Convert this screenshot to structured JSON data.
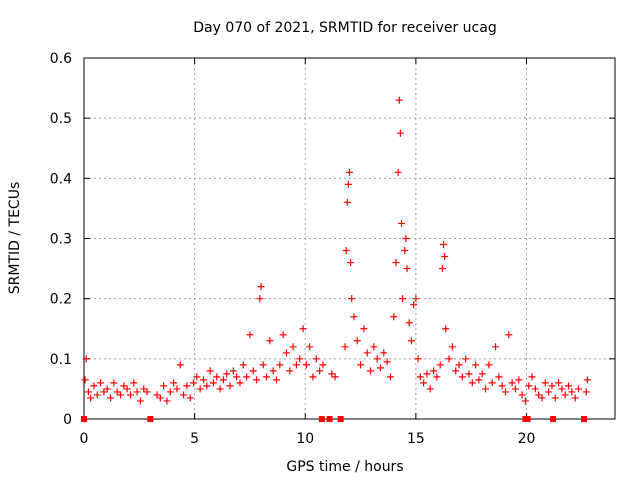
{
  "chart_data": {
    "type": "scatter",
    "title": "Day 070 of 2021, SRMTID for receiver ucag",
    "xlabel": "GPS time / hours",
    "ylabel": "SRMTID / TECUs",
    "xlim": [
      0,
      24
    ],
    "ylim": [
      0,
      0.6
    ],
    "xticks": [
      0,
      5,
      10,
      15,
      20
    ],
    "yticks": [
      0,
      0.1,
      0.2,
      0.3,
      0.4,
      0.5,
      0.6
    ],
    "x_tick_labels": [
      "0",
      "5",
      "10",
      "15",
      "20"
    ],
    "y_tick_labels": [
      "0",
      "0.1",
      "0.2",
      "0.3",
      "0.4",
      "0.5",
      "0.6"
    ],
    "grid": true,
    "marker": "+",
    "color": "#ff0000",
    "series": [
      {
        "name": "SRMTID",
        "x": [
          0.05,
          0.1,
          0.2,
          0.3,
          0.45,
          0.6,
          0.75,
          0.9,
          1.05,
          1.2,
          1.35,
          1.5,
          1.65,
          1.8,
          1.95,
          2.1,
          2.25,
          2.4,
          2.55,
          2.7,
          2.85,
          3.3,
          3.45,
          3.6,
          3.75,
          3.9,
          4.05,
          4.2,
          4.35,
          4.5,
          4.65,
          4.8,
          4.95,
          5.1,
          5.25,
          5.4,
          5.55,
          5.7,
          5.85,
          6.0,
          6.15,
          6.3,
          6.45,
          6.6,
          6.75,
          6.9,
          7.05,
          7.2,
          7.35,
          7.5,
          7.65,
          7.8,
          7.95,
          8.0,
          8.1,
          8.25,
          8.4,
          8.55,
          8.7,
          8.85,
          9.0,
          9.15,
          9.3,
          9.45,
          9.6,
          9.75,
          9.9,
          10.05,
          10.2,
          10.35,
          10.5,
          10.65,
          10.8,
          11.2,
          11.35,
          11.8,
          11.85,
          11.9,
          11.95,
          12.0,
          12.05,
          12.1,
          12.2,
          12.35,
          12.5,
          12.65,
          12.8,
          12.95,
          13.1,
          13.25,
          13.4,
          13.55,
          13.7,
          13.85,
          14.0,
          14.1,
          14.2,
          14.25,
          14.3,
          14.35,
          14.4,
          14.5,
          14.55,
          14.6,
          14.7,
          14.8,
          14.9,
          15.0,
          15.1,
          15.2,
          15.35,
          15.5,
          15.65,
          15.8,
          15.95,
          16.1,
          16.2,
          16.25,
          16.3,
          16.35,
          16.5,
          16.65,
          16.8,
          16.95,
          17.1,
          17.25,
          17.4,
          17.55,
          17.7,
          17.85,
          18.0,
          18.15,
          18.3,
          18.45,
          18.6,
          18.75,
          18.9,
          19.05,
          19.2,
          19.35,
          19.5,
          19.65,
          19.8,
          19.95,
          20.1,
          20.25,
          20.4,
          20.55,
          20.7,
          20.85,
          21.0,
          21.15,
          21.3,
          21.45,
          21.6,
          21.75,
          21.9,
          22.05,
          22.2,
          22.35,
          22.7,
          22.75
        ],
        "y": [
          0.065,
          0.1,
          0.045,
          0.035,
          0.055,
          0.04,
          0.06,
          0.045,
          0.05,
          0.035,
          0.06,
          0.045,
          0.04,
          0.055,
          0.05,
          0.04,
          0.06,
          0.045,
          0.03,
          0.05,
          0.045,
          0.04,
          0.035,
          0.055,
          0.03,
          0.045,
          0.06,
          0.05,
          0.09,
          0.04,
          0.055,
          0.035,
          0.06,
          0.07,
          0.05,
          0.065,
          0.055,
          0.08,
          0.06,
          0.07,
          0.05,
          0.065,
          0.075,
          0.055,
          0.08,
          0.07,
          0.06,
          0.09,
          0.07,
          0.14,
          0.08,
          0.065,
          0.2,
          0.22,
          0.09,
          0.07,
          0.13,
          0.08,
          0.065,
          0.09,
          0.14,
          0.11,
          0.08,
          0.12,
          0.09,
          0.1,
          0.15,
          0.09,
          0.12,
          0.07,
          0.1,
          0.08,
          0.09,
          0.075,
          0.07,
          0.12,
          0.28,
          0.36,
          0.39,
          0.41,
          0.26,
          0.2,
          0.17,
          0.13,
          0.09,
          0.15,
          0.11,
          0.08,
          0.12,
          0.1,
          0.085,
          0.11,
          0.095,
          0.07,
          0.17,
          0.26,
          0.41,
          0.53,
          0.475,
          0.325,
          0.2,
          0.28,
          0.3,
          0.25,
          0.16,
          0.13,
          0.19,
          0.2,
          0.1,
          0.07,
          0.06,
          0.075,
          0.05,
          0.08,
          0.07,
          0.09,
          0.25,
          0.29,
          0.27,
          0.15,
          0.1,
          0.12,
          0.08,
          0.09,
          0.07,
          0.1,
          0.075,
          0.06,
          0.09,
          0.065,
          0.075,
          0.05,
          0.09,
          0.06,
          0.12,
          0.07,
          0.055,
          0.045,
          0.14,
          0.06,
          0.05,
          0.065,
          0.04,
          0.03,
          0.055,
          0.07,
          0.05,
          0.04,
          0.035,
          0.06,
          0.045,
          0.055,
          0.035,
          0.06,
          0.05,
          0.04,
          0.055,
          0.045,
          0.035,
          0.05,
          0.045,
          0.065
        ]
      }
    ],
    "zero_points_x": [
      0.0,
      3.0,
      10.75,
      11.1,
      11.6,
      19.95,
      20.05,
      21.2,
      22.6
    ]
  }
}
